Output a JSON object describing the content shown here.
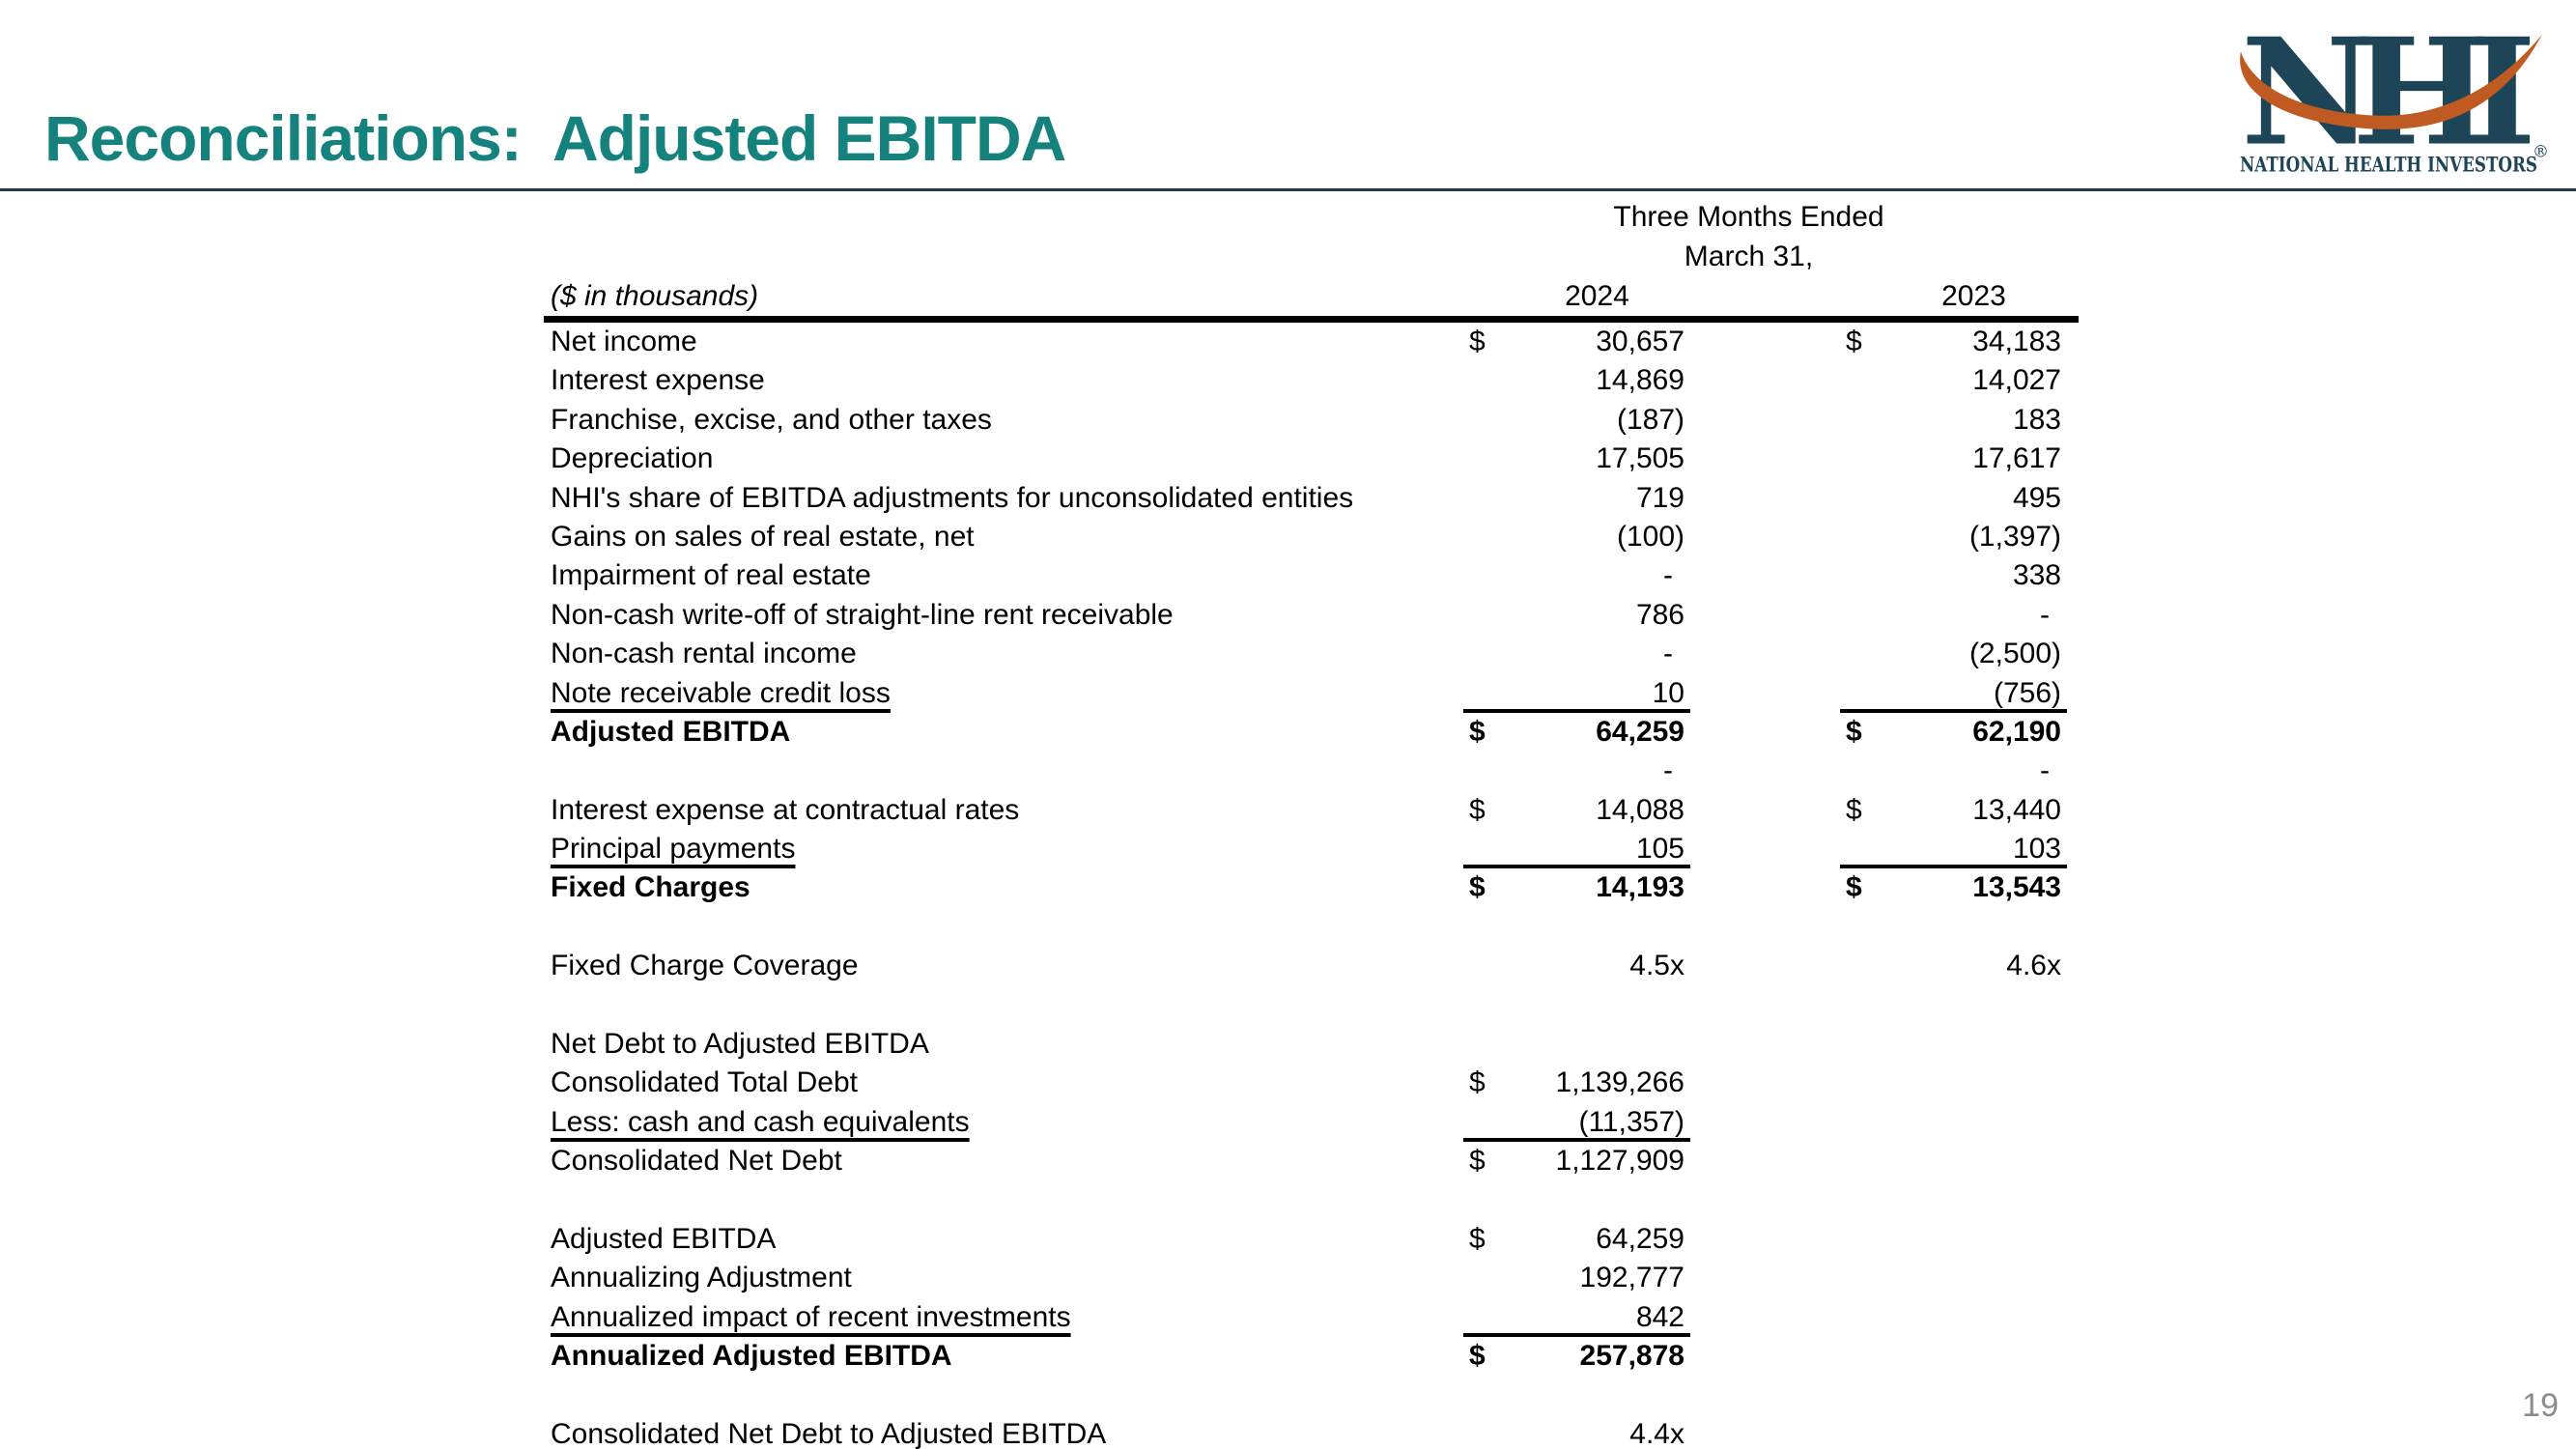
{
  "slide": {
    "title": "Reconciliations:  Adjusted EBITDA",
    "page_number": "19"
  },
  "logo": {
    "monogram": "NHI",
    "registered_mark": "®",
    "caption": "NATIONAL HEALTH INVESTORS"
  },
  "theme": {
    "title_color": "#16827D",
    "title_rule_color": "#24384A",
    "logo_navy": "#1D4557",
    "logo_orange": "#C05A23",
    "page_number_color": "#8C8C8C",
    "text_color": "#000000"
  },
  "table": {
    "group_header_line1": "Three Months Ended",
    "group_header_line2": "March 31,",
    "units_note": "($ in thousands)",
    "col_headers": [
      "2024",
      "2023"
    ],
    "rows": [
      {
        "label": "Net income",
        "d1": "$",
        "v1": "30,657",
        "r1": false,
        "d2": "$",
        "v2": "34,183",
        "r2": false,
        "bold": false,
        "underline": false
      },
      {
        "label": "Interest expense",
        "d1": "",
        "v1": "14,869",
        "r1": false,
        "d2": "",
        "v2": "14,027",
        "r2": false,
        "bold": false,
        "underline": false
      },
      {
        "label": "Franchise, excise, and other taxes",
        "d1": "",
        "v1": "(187)",
        "r1": false,
        "d2": "",
        "v2": "183",
        "r2": false,
        "bold": false,
        "underline": false
      },
      {
        "label": "Depreciation",
        "d1": "",
        "v1": "17,505",
        "r1": false,
        "d2": "",
        "v2": "17,617",
        "r2": false,
        "bold": false,
        "underline": false
      },
      {
        "label": "NHI's share of EBITDA adjustments for unconsolidated entities",
        "d1": "",
        "v1": "719",
        "r1": false,
        "d2": "",
        "v2": "495",
        "r2": false,
        "bold": false,
        "underline": false
      },
      {
        "label": "Gains on sales of real estate, net",
        "d1": "",
        "v1": "(100)",
        "r1": false,
        "d2": "",
        "v2": "(1,397)",
        "r2": false,
        "bold": false,
        "underline": false
      },
      {
        "label": "Impairment of real estate",
        "d1": "",
        "v1": "-",
        "r1": false,
        "d2": "",
        "v2": "338",
        "r2": false,
        "bold": false,
        "underline": false
      },
      {
        "label": "Non-cash write-off of straight-line rent receivable",
        "d1": "",
        "v1": "786",
        "r1": false,
        "d2": "",
        "v2": "-",
        "r2": false,
        "bold": false,
        "underline": false
      },
      {
        "label": "Non-cash rental income",
        "d1": "",
        "v1": "-",
        "r1": false,
        "d2": "",
        "v2": "(2,500)",
        "r2": false,
        "bold": false,
        "underline": false
      },
      {
        "label": "Note receivable credit loss",
        "d1": "",
        "v1": "10",
        "r1": true,
        "d2": "",
        "v2": "(756)",
        "r2": true,
        "bold": false,
        "underline": true
      },
      {
        "label": "Adjusted EBITDA",
        "d1": "$",
        "v1": "64,259",
        "r1": false,
        "d2": "$",
        "v2": "62,190",
        "r2": false,
        "bold": true,
        "underline": false
      },
      {
        "label": "",
        "d1": "",
        "v1": "-",
        "r1": false,
        "d2": "",
        "v2": "-",
        "r2": false,
        "bold": false,
        "underline": false
      },
      {
        "label": "Interest expense at contractual rates",
        "d1": "$",
        "v1": "14,088",
        "r1": false,
        "d2": "$",
        "v2": "13,440",
        "r2": false,
        "bold": false,
        "underline": false
      },
      {
        "label": "Principal payments",
        "d1": "",
        "v1": "105",
        "r1": true,
        "d2": "",
        "v2": "103",
        "r2": true,
        "bold": false,
        "underline": true
      },
      {
        "label": "Fixed Charges",
        "d1": "$",
        "v1": "14,193",
        "r1": false,
        "d2": "$",
        "v2": "13,543",
        "r2": false,
        "bold": true,
        "underline": false
      },
      {
        "label": "",
        "d1": "",
        "v1": "",
        "r1": false,
        "d2": "",
        "v2": "",
        "r2": false,
        "bold": false,
        "underline": false
      },
      {
        "label": "Fixed Charge Coverage",
        "d1": "",
        "v1": "4.5x",
        "r1": false,
        "d2": "",
        "v2": "4.6x",
        "r2": false,
        "bold": false,
        "underline": false
      },
      {
        "label": "",
        "d1": "",
        "v1": "",
        "r1": false,
        "d2": "",
        "v2": "",
        "r2": false,
        "bold": false,
        "underline": false
      },
      {
        "label": "Net Debt to Adjusted EBITDA",
        "d1": "",
        "v1": "",
        "r1": false,
        "d2": "",
        "v2": "",
        "r2": false,
        "bold": false,
        "underline": false
      },
      {
        "label": "Consolidated Total Debt",
        "d1": "$",
        "v1": "1,139,266",
        "r1": false,
        "d2": "",
        "v2": "",
        "r2": false,
        "bold": false,
        "underline": false
      },
      {
        "label": "Less: cash and cash equivalents",
        "d1": "",
        "v1": "(11,357)",
        "r1": true,
        "d2": "",
        "v2": "",
        "r2": false,
        "bold": false,
        "underline": true
      },
      {
        "label": "Consolidated Net Debt",
        "d1": "$",
        "v1": "1,127,909",
        "r1": false,
        "d2": "",
        "v2": "",
        "r2": false,
        "bold": false,
        "underline": false
      },
      {
        "label": "",
        "d1": "",
        "v1": "",
        "r1": false,
        "d2": "",
        "v2": "",
        "r2": false,
        "bold": false,
        "underline": false
      },
      {
        "label": "Adjusted EBITDA",
        "d1": "$",
        "v1": "64,259",
        "r1": false,
        "d2": "",
        "v2": "",
        "r2": false,
        "bold": false,
        "underline": false
      },
      {
        "label": "Annualizing Adjustment",
        "d1": "",
        "v1": "192,777",
        "r1": false,
        "d2": "",
        "v2": "",
        "r2": false,
        "bold": false,
        "underline": false
      },
      {
        "label": "Annualized impact of recent investments",
        "d1": "",
        "v1": "842",
        "r1": true,
        "d2": "",
        "v2": "",
        "r2": false,
        "bold": false,
        "underline": true
      },
      {
        "label": "Annualized Adjusted EBITDA",
        "d1": "$",
        "v1": "257,878",
        "r1": false,
        "d2": "",
        "v2": "",
        "r2": false,
        "bold": true,
        "underline": false
      },
      {
        "label": "",
        "d1": "",
        "v1": "",
        "r1": false,
        "d2": "",
        "v2": "",
        "r2": false,
        "bold": false,
        "underline": false
      },
      {
        "label": "Consolidated Net Debt to Adjusted EBITDA",
        "d1": "",
        "v1": "4.4x",
        "r1": false,
        "d2": "",
        "v2": "",
        "r2": false,
        "bold": false,
        "underline": false
      }
    ]
  }
}
